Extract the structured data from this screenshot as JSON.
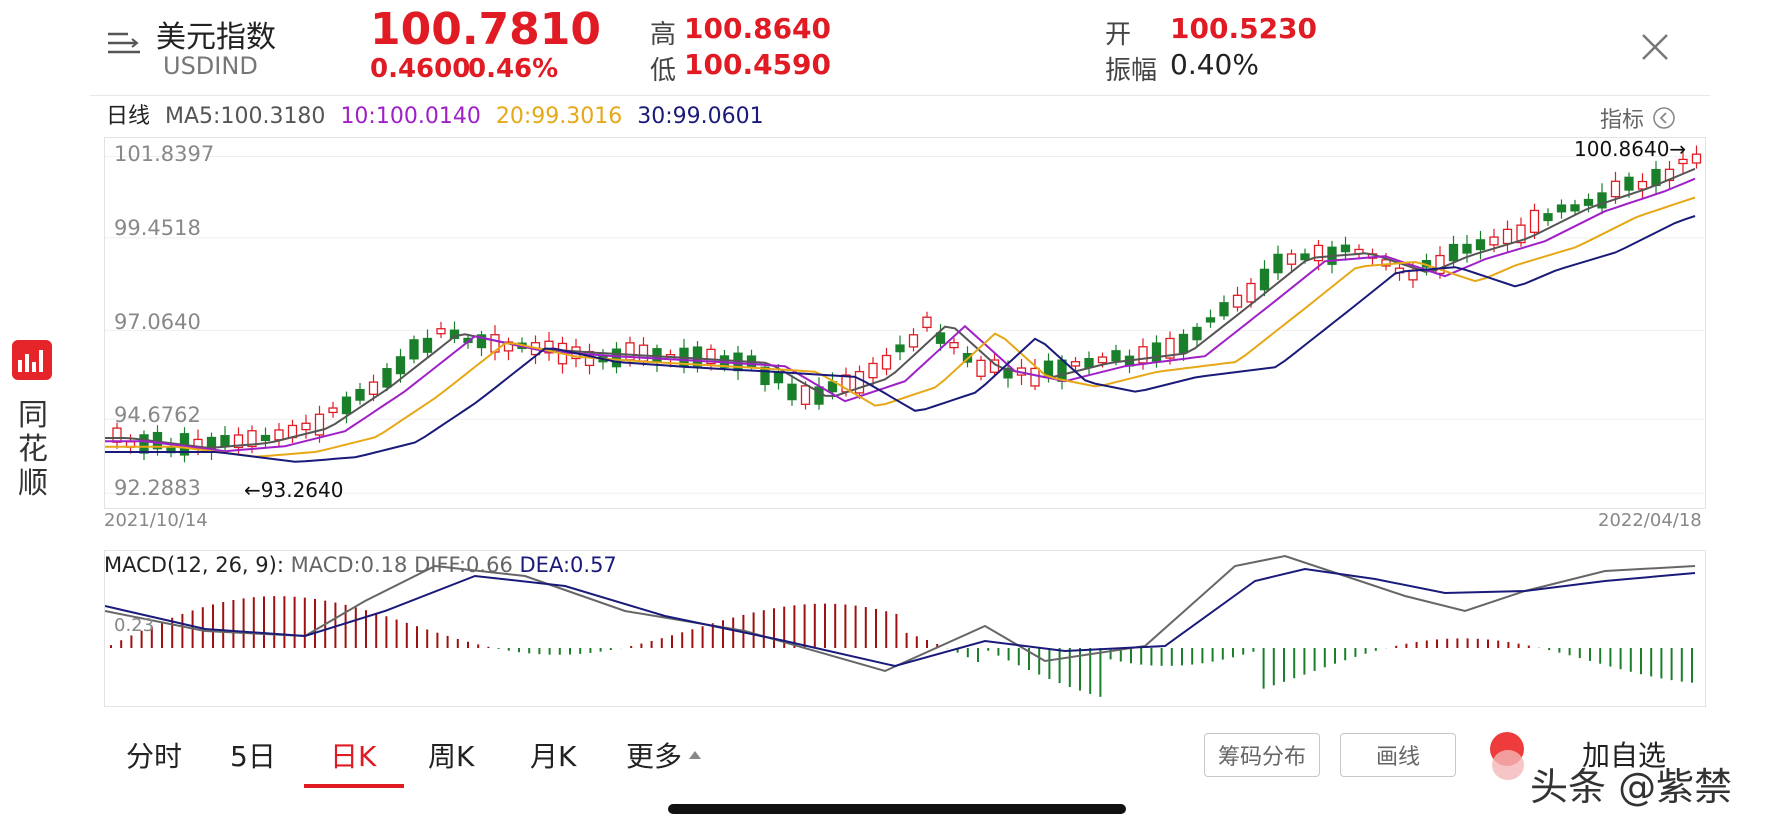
{
  "header": {
    "title": "美元指数",
    "code": "USDIND",
    "price": "100.7810",
    "change": "0.4600",
    "change_pct": "0.46%",
    "high_label": "高",
    "high": "100.8640",
    "low_label": "低",
    "low": "100.4590",
    "open_label": "开",
    "open": "100.5230",
    "amp_label": "振幅",
    "amp": "0.40%"
  },
  "ma_bar": {
    "period": "日线",
    "ma5": "MA5:100.3180",
    "ma10": "10:100.0140",
    "ma20": "20:99.3016",
    "ma30": "30:99.0601",
    "indicator_btn": "指标"
  },
  "colors": {
    "up": "#e01b23",
    "down": "#1a7f2a",
    "ma5": "#555555",
    "ma10": "#a020c8",
    "ma20": "#e6a817",
    "ma30": "#1a1a7a"
  },
  "main_chart": {
    "y_labels": [
      "101.8397",
      "99.4518",
      "97.0640",
      "94.6762",
      "92.2883"
    ],
    "max_marker": "100.8640→",
    "min_marker": "←93.2640",
    "start_date": "2021/10/14",
    "end_date": "2022/04/18"
  },
  "macd_chart": {
    "label": "MACD(12, 26, 9):",
    "macd": "MACD:0.18",
    "diff": "DIFF:0.66",
    "dea": "DEA:0.57",
    "zero_label": "0.23"
  },
  "tabs": [
    "分时",
    "5日",
    "日K",
    "周K",
    "月K",
    "更多"
  ],
  "buttons": {
    "chip": "筹码分布",
    "draw": "画线",
    "add_fav": "加自选"
  },
  "sidebar": {
    "brand": [
      "同",
      "花",
      "顺"
    ]
  },
  "watermark": "头条 @紫禁"
}
